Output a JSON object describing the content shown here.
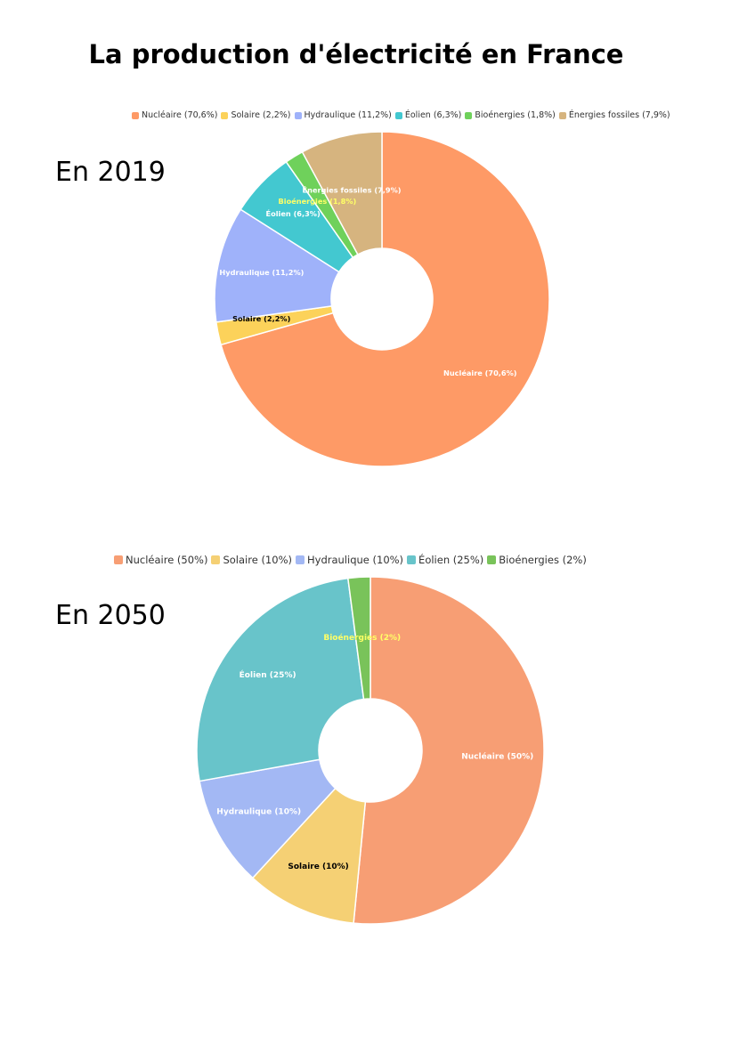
{
  "page": {
    "title": "La production d'électricité en France"
  },
  "chart_data": [
    {
      "type": "pie",
      "title": "En 2019",
      "donut": true,
      "legend_position": "top",
      "categories": [
        "Nucléaire",
        "Solaire",
        "Hydraulique",
        "Éolien",
        "Bioénergies",
        "Énergies fossiles"
      ],
      "values": [
        70.6,
        2.2,
        11.2,
        6.3,
        1.8,
        7.9
      ],
      "labels": [
        "Nucléaire (70,6%)",
        "Solaire (2,2%)",
        "Hydraulique (11,2%)",
        "Éolien (6,3%)",
        "Bioénergies (1,8%)",
        "Énergies fossiles (7,9%)"
      ],
      "colors": [
        "#fe9a66",
        "#fcd25a",
        "#9fb2fa",
        "#43c8d0",
        "#6fd15b",
        "#d6b47f"
      ],
      "label_colors": [
        "#ffffff",
        "#000000",
        "#ffffff",
        "#ffffff",
        "#ffff66",
        "#ffffff"
      ]
    },
    {
      "type": "pie",
      "title": "En 2050",
      "donut": true,
      "legend_position": "top",
      "categories": [
        "Nucléaire",
        "Solaire",
        "Hydraulique",
        "Éolien",
        "Bioénergies"
      ],
      "values": [
        50,
        10,
        10,
        25,
        2
      ],
      "labels": [
        "Nucléaire (50%)",
        "Solaire (10%)",
        "Hydraulique (10%)",
        "Éolien (25%)",
        "Bioénergies (2%)"
      ],
      "colors": [
        "#f79e74",
        "#f5d074",
        "#a3b8f4",
        "#68c4ca",
        "#79c35a"
      ],
      "label_colors": [
        "#ffffff",
        "#000000",
        "#ffffff",
        "#ffffff",
        "#ffff66"
      ]
    }
  ]
}
